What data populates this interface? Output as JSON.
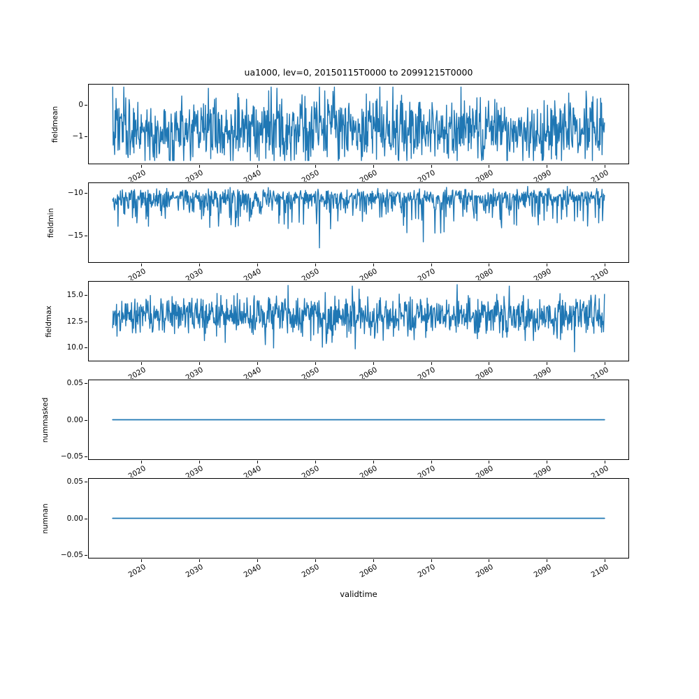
{
  "figure": {
    "title": "ua1000, lev=0, 20150115T0000 to 20991215T0000",
    "xlabel": "validtime",
    "line_color": "#1f77b4",
    "axis_color": "#000000",
    "background_color": "#ffffff"
  },
  "chart_data": {
    "type": "line",
    "title": "ua1000, lev=0, 20150115T0000 to 20991215T0000",
    "xlabel": "validtime",
    "grid": false,
    "legend": "none",
    "x_axis": {
      "start": 2015.04,
      "end": 2099.96,
      "n_points": 1019,
      "xlim": [
        2010.79,
        2104.21
      ],
      "xticks": [
        2020,
        2030,
        2040,
        2050,
        2060,
        2070,
        2080,
        2090,
        2100
      ],
      "xtick_labels": [
        "2020",
        "2030",
        "2040",
        "2050",
        "2060",
        "2070",
        "2080",
        "2090",
        "2100"
      ],
      "tick_rotation_deg": 30
    },
    "subplots": [
      {
        "ylabel": "fieldmean",
        "ylim": [
          -1.909,
          0.682
        ],
        "yticks": [
          0,
          -1
        ],
        "ytick_labels": [
          "0",
          "−1"
        ],
        "series": {
          "name": "fieldmean",
          "kind": "noise",
          "seed": 7,
          "base": -0.8,
          "gauss": 0.52,
          "halfnormal": 0,
          "spike_prob": 0,
          "spike_scale": 0,
          "clip": [
            -1.79,
            0.58
          ],
          "approx_mean": -0.8,
          "approx_min": -1.79,
          "approx_max": 0.58
        }
      },
      {
        "ylabel": "fieldmin",
        "ylim": [
          -18.25,
          -8.75
        ],
        "yticks": [
          -10,
          -15
        ],
        "ytick_labels": [
          "−10",
          "−15"
        ],
        "series": {
          "name": "fieldmin",
          "kind": "noise",
          "seed": 13,
          "base": -9.85,
          "gauss": 0.3,
          "halfnormal": 0.95,
          "spike_prob": 0.16,
          "spike_scale": 3.4,
          "clip": [
            -17.8,
            -9.22
          ],
          "approx_mean": -11.0,
          "approx_min": -17.8,
          "approx_max": -9.22
        }
      },
      {
        "ylabel": "fieldmax",
        "ylim": [
          8.65,
          16.35
        ],
        "yticks": [
          15.0,
          12.5,
          10.0
        ],
        "ytick_labels": [
          "15.0",
          "12.5",
          "10.0"
        ],
        "series": {
          "name": "fieldmax",
          "kind": "noise",
          "seed": 21,
          "base": 13.35,
          "gauss": 0.9,
          "halfnormal": 0.35,
          "spike_prob": 0.04,
          "spike_scale": 2.4,
          "clip": [
            8.95,
            16.15
          ],
          "approx_mean": 13.2,
          "approx_min": 8.95,
          "approx_max": 16.15
        }
      },
      {
        "ylabel": "nummasked",
        "ylim": [
          -0.0552,
          0.0552
        ],
        "yticks": [
          0.05,
          0.0,
          -0.05
        ],
        "ytick_labels": [
          "0.05",
          "0.00",
          "−0.05"
        ],
        "series": {
          "name": "nummasked",
          "kind": "constant",
          "value": 0.0
        }
      },
      {
        "ylabel": "numnan",
        "ylim": [
          -0.0552,
          0.0552
        ],
        "yticks": [
          0.05,
          0.0,
          -0.05
        ],
        "ytick_labels": [
          "0.05",
          "0.00",
          "−0.05"
        ],
        "series": {
          "name": "numnan",
          "kind": "constant",
          "value": 0.0
        }
      }
    ]
  }
}
